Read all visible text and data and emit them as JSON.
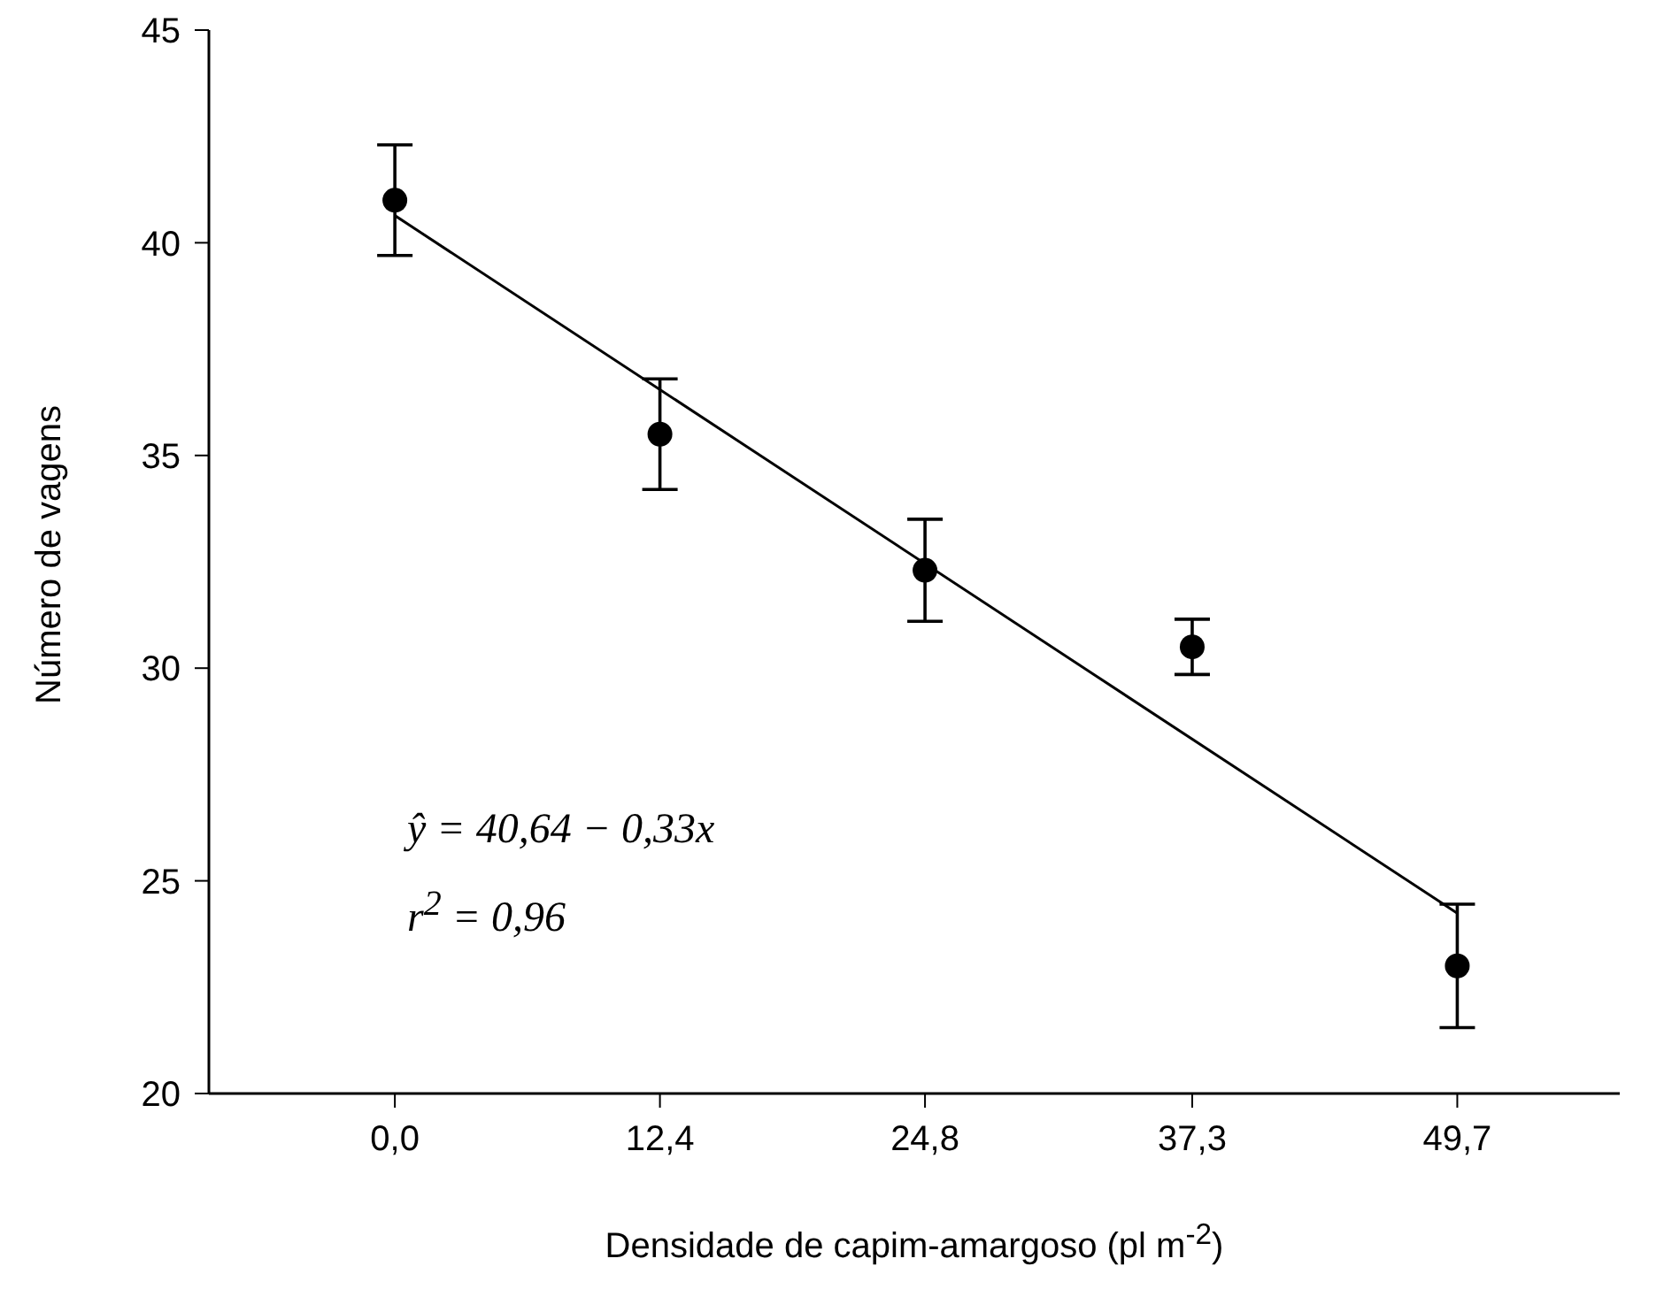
{
  "chart_data": {
    "type": "scatter",
    "xlabel": "Densidade de capim-amargoso (pl m$^{-2}$)",
    "ylabel": "Número de vagens",
    "annotations": [
      "ŷ = 40,64 − 0,33x",
      "r$^{2}$ = 0,96"
    ],
    "x": [
      0,
      12.4,
      24.8,
      37.3,
      49.7
    ],
    "series": [
      {
        "color": "#000000",
        "values": [
          41.0,
          35.5,
          32.3,
          30.5,
          23.0
        ],
        "errors": [
          1.3,
          1.3,
          1.2,
          0.65,
          1.45
        ],
        "marker": "circle"
      },
      {
        "type": "line",
        "color": "#000000",
        "x": [
          0,
          49.7
        ],
        "values": [
          40.64,
          24.24
        ],
        "line_style": "solid",
        "marker": "none"
      }
    ],
    "xlim": [
      -8.7,
      57.3
    ],
    "xticks": [
      {
        "value": 0,
        "label": "0,0"
      },
      {
        "value": 12.4,
        "label": "12,4"
      },
      {
        "value": 24.8,
        "label": "24,8"
      },
      {
        "value": 37.3,
        "label": "37,3"
      },
      {
        "value": 49.7,
        "label": "49,7"
      }
    ],
    "ylim": [
      20,
      45
    ],
    "yticks": [
      20,
      25,
      30,
      35,
      40,
      45
    ]
  }
}
